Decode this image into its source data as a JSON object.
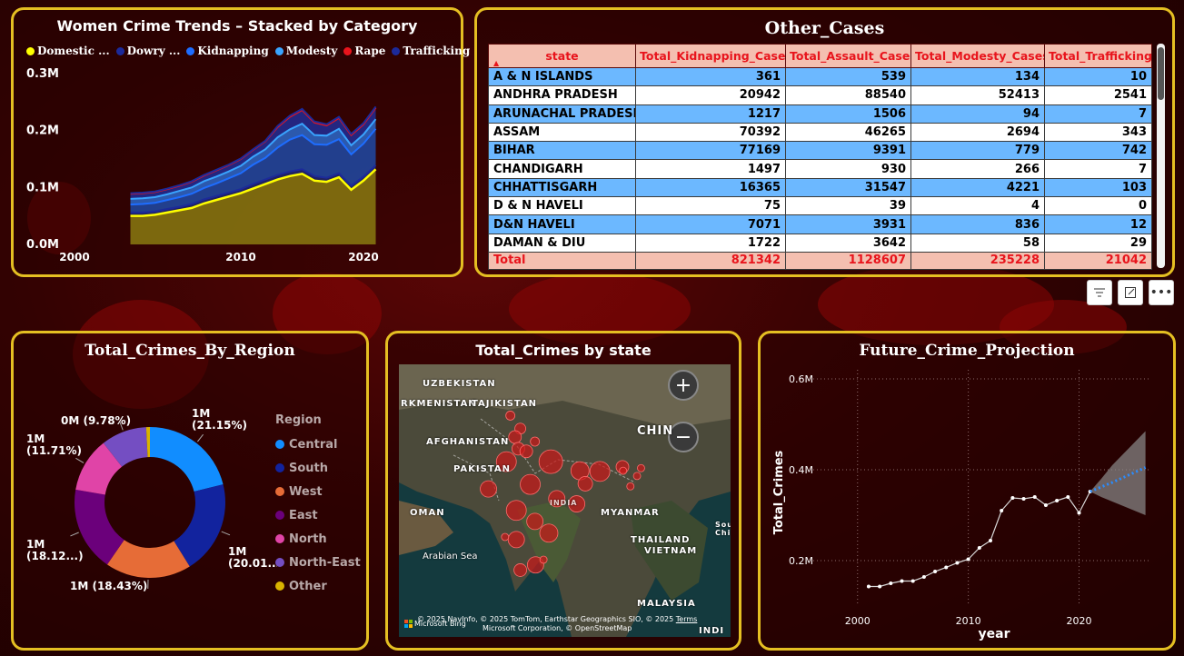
{
  "charts": {
    "trends": {
      "title": "Women Crime Trends – Stacked by Category",
      "legend": [
        {
          "label": "Domestic ...",
          "color": "#ffff00"
        },
        {
          "label": "Dowry ...",
          "color": "#1c2a9a"
        },
        {
          "label": "Kidnapping",
          "color": "#1e6dff"
        },
        {
          "label": "Modesty",
          "color": "#39a4ff"
        },
        {
          "label": "Rape",
          "color": "#e8141c"
        },
        {
          "label": "Trafficking",
          "color": "#1c2a9a"
        }
      ],
      "y_ticks": [
        "0.3M",
        "0.2M",
        "0.1M",
        "0.0M"
      ],
      "x_ticks": [
        "2000",
        "2010",
        "2020"
      ]
    },
    "table": {
      "title": "Other_Cases",
      "columns": [
        "state",
        "Total_Kidnapping_Cases",
        "Total_Assault_Cases",
        "Total_Modesty_Cases",
        "Total_Trafficking"
      ],
      "rows": [
        [
          "A & N ISLANDS",
          "361",
          "539",
          "134",
          "10"
        ],
        [
          "ANDHRA PRADESH",
          "20942",
          "88540",
          "52413",
          "2541"
        ],
        [
          "ARUNACHAL PRADESH",
          "1217",
          "1506",
          "94",
          "7"
        ],
        [
          "ASSAM",
          "70392",
          "46265",
          "2694",
          "343"
        ],
        [
          "BIHAR",
          "77169",
          "9391",
          "779",
          "742"
        ],
        [
          "CHANDIGARH",
          "1497",
          "930",
          "266",
          "7"
        ],
        [
          "CHHATTISGARH",
          "16365",
          "31547",
          "4221",
          "103"
        ],
        [
          "D & N HAVELI",
          "75",
          "39",
          "4",
          "0"
        ],
        [
          "D&N HAVELI",
          "7071",
          "3931",
          "836",
          "12"
        ],
        [
          "DAMAN & DIU",
          "1722",
          "3642",
          "58",
          "29"
        ]
      ],
      "total": [
        "Total",
        "821342",
        "1128607",
        "235228",
        "21042"
      ]
    },
    "region": {
      "title": "Total_Crimes_By_Region",
      "legend_title": "Region"
    },
    "map": {
      "title": "Total_Crimes by state",
      "labels": [
        "UZBEKISTAN",
        "RKMENISTAN",
        "TAJIKISTAN",
        "AFGHANISTAN",
        "PAKISTAN",
        "CHIN",
        "OMAN",
        "Arabian Sea",
        "MYANMAR",
        "THAILAND",
        "VIETNAM",
        "MALAYSIA",
        "INDIA",
        "INDI",
        "Sou Chi"
      ],
      "attribution_1": "© 2025 NavInfo, © 2025 TomTom, Earthstar Geographics SIO, © 2025",
      "attribution_2": "Microsoft Corporation, © OpenStreetMap",
      "terms": "Terms",
      "bing": "Microsoft Bing"
    },
    "projection": {
      "title": "Future_Crime_Projection",
      "xlabel": "year",
      "ylabel": "Total_Crimes"
    }
  },
  "chart_data": [
    {
      "type": "area",
      "title": "Women Crime Trends – Stacked by Category",
      "stacked": true,
      "x": [
        2001,
        2002,
        2003,
        2004,
        2005,
        2006,
        2007,
        2008,
        2009,
        2010,
        2011,
        2012,
        2013,
        2014,
        2015,
        2016,
        2017,
        2018,
        2019,
        2020,
        2021
      ],
      "series": [
        {
          "name": "Domestic ...",
          "values": [
            50,
            50,
            52,
            56,
            60,
            64,
            72,
            78,
            84,
            90,
            98,
            106,
            114,
            120,
            124,
            112,
            110,
            118,
            96,
            112,
            132
          ]
        },
        {
          "name": "Dowry ...",
          "values": [
            6,
            6,
            6,
            6,
            6,
            7,
            7,
            7,
            7,
            7,
            8,
            8,
            8,
            8,
            8,
            8,
            7,
            7,
            7,
            7,
            7
          ]
        },
        {
          "name": "Kidnapping",
          "values": [
            14,
            15,
            15,
            16,
            17,
            18,
            20,
            22,
            25,
            28,
            34,
            38,
            48,
            56,
            60,
            56,
            58,
            60,
            55,
            58,
            64
          ]
        },
        {
          "name": "Modesty",
          "values": [
            10,
            10,
            10,
            10,
            11,
            11,
            12,
            12,
            12,
            13,
            14,
            15,
            18,
            18,
            20,
            16,
            16,
            18,
            16,
            16,
            17
          ]
        },
        {
          "name": "Rape",
          "values": [
            9,
            9,
            9,
            9,
            9,
            10,
            10,
            11,
            11,
            12,
            12,
            14,
            18,
            22,
            24,
            22,
            18,
            19,
            18,
            18,
            20
          ]
        },
        {
          "name": "Trafficking",
          "values": [
            1,
            1,
            1,
            1,
            1,
            1,
            1,
            1,
            1,
            1,
            1,
            1,
            2,
            2,
            2,
            2,
            2,
            2,
            2,
            2,
            2
          ]
        }
      ],
      "xlim": [
        1998,
        2022
      ],
      "ylim": [
        0,
        300000
      ],
      "y_unit": "thousand"
    },
    {
      "type": "pie",
      "title": "Total_Crimes_By_Region",
      "donut": true,
      "categories": [
        "Central",
        "South",
        "West",
        "East",
        "North",
        "North-East",
        "Other"
      ],
      "values": [
        21.15,
        20.01,
        18.43,
        18.12,
        11.71,
        9.78,
        0.8
      ],
      "colors": [
        "#118dff",
        "#12239e",
        "#e66c37",
        "#6b007b",
        "#e044a7",
        "#744ec2",
        "#d9b300"
      ],
      "labels": [
        {
          "text": "1M (21.15%)",
          "lines": [
            "1M",
            "(21.15%)"
          ]
        },
        {
          "text": "1M (20.01...)",
          "lines": [
            "1M",
            "(20.01...)"
          ]
        },
        {
          "text": "1M (18.43%)",
          "lines": [
            "1M (18.43%)"
          ]
        },
        {
          "text": "1M (18.12...)",
          "lines": [
            "1M",
            "(18.12...)"
          ]
        },
        {
          "text": "1M (11.71%)",
          "lines": [
            "1M",
            "(11.71%)"
          ]
        },
        {
          "text": "0M (9.78%)",
          "lines": [
            "0M (9.78%)"
          ]
        }
      ]
    },
    {
      "type": "scatter",
      "title": "Total_Crimes by state",
      "note": "bubble map, sizes relative",
      "points": [
        {
          "lon": 74.8,
          "lat": 34.1,
          "r": 5
        },
        {
          "lon": 76.3,
          "lat": 32.1,
          "r": 6
        },
        {
          "lon": 75.5,
          "lat": 30.8,
          "r": 7
        },
        {
          "lon": 76.0,
          "lat": 29.0,
          "r": 7
        },
        {
          "lon": 77.2,
          "lat": 28.6,
          "r": 7
        },
        {
          "lon": 74.2,
          "lat": 27.0,
          "r": 11
        },
        {
          "lon": 80.9,
          "lat": 27.0,
          "r": 13
        },
        {
          "lon": 78.5,
          "lat": 30.1,
          "r": 5
        },
        {
          "lon": 85.3,
          "lat": 25.6,
          "r": 10
        },
        {
          "lon": 88.3,
          "lat": 25.5,
          "r": 11
        },
        {
          "lon": 86.1,
          "lat": 23.6,
          "r": 8
        },
        {
          "lon": 91.7,
          "lat": 26.2,
          "r": 7
        },
        {
          "lon": 93.9,
          "lat": 24.8,
          "r": 4
        },
        {
          "lon": 94.5,
          "lat": 26.0,
          "r": 4
        },
        {
          "lon": 92.9,
          "lat": 23.2,
          "r": 4
        },
        {
          "lon": 91.8,
          "lat": 25.6,
          "r": 4
        },
        {
          "lon": 71.5,
          "lat": 22.8,
          "r": 9
        },
        {
          "lon": 77.8,
          "lat": 23.5,
          "r": 11
        },
        {
          "lon": 81.8,
          "lat": 21.3,
          "r": 9
        },
        {
          "lon": 84.8,
          "lat": 20.5,
          "r": 9
        },
        {
          "lon": 75.7,
          "lat": 19.5,
          "r": 11
        },
        {
          "lon": 78.5,
          "lat": 17.8,
          "r": 9
        },
        {
          "lon": 80.6,
          "lat": 16.0,
          "r": 10
        },
        {
          "lon": 75.7,
          "lat": 15.0,
          "r": 9
        },
        {
          "lon": 74.0,
          "lat": 15.4,
          "r": 4
        },
        {
          "lon": 76.3,
          "lat": 10.3,
          "r": 7
        },
        {
          "lon": 78.6,
          "lat": 11.1,
          "r": 9
        },
        {
          "lon": 79.8,
          "lat": 11.9,
          "r": 4
        }
      ]
    },
    {
      "type": "line",
      "title": "Future_Crime_Projection",
      "xlabel": "year",
      "ylabel": "Total_Crimes",
      "x": [
        2001,
        2002,
        2003,
        2004,
        2005,
        2006,
        2007,
        2008,
        2009,
        2010,
        2011,
        2012,
        2013,
        2014,
        2015,
        2016,
        2017,
        2018,
        2019,
        2020,
        2021
      ],
      "values": [
        143000,
        143000,
        150000,
        155000,
        155000,
        164000,
        176000,
        185000,
        195000,
        203000,
        228000,
        244000,
        310000,
        338000,
        336000,
        340000,
        322000,
        332000,
        340000,
        305000,
        352000
      ],
      "forecast": {
        "x": [
          2021,
          2022,
          2023,
          2024,
          2025,
          2026
        ],
        "values": [
          352000,
          362000,
          372000,
          383000,
          394000,
          405000
        ],
        "upper": [
          352000,
          380000,
          410000,
          435000,
          460000,
          485000
        ],
        "lower": [
          352000,
          340000,
          330000,
          320000,
          310000,
          300000
        ]
      },
      "xticks": [
        "2000",
        "2010",
        "2020"
      ],
      "yticks": [
        "0.6M",
        "0.4M",
        "0.2M"
      ],
      "xlim": [
        1996,
        2028
      ],
      "ylim": [
        100000,
        620000
      ]
    }
  ]
}
